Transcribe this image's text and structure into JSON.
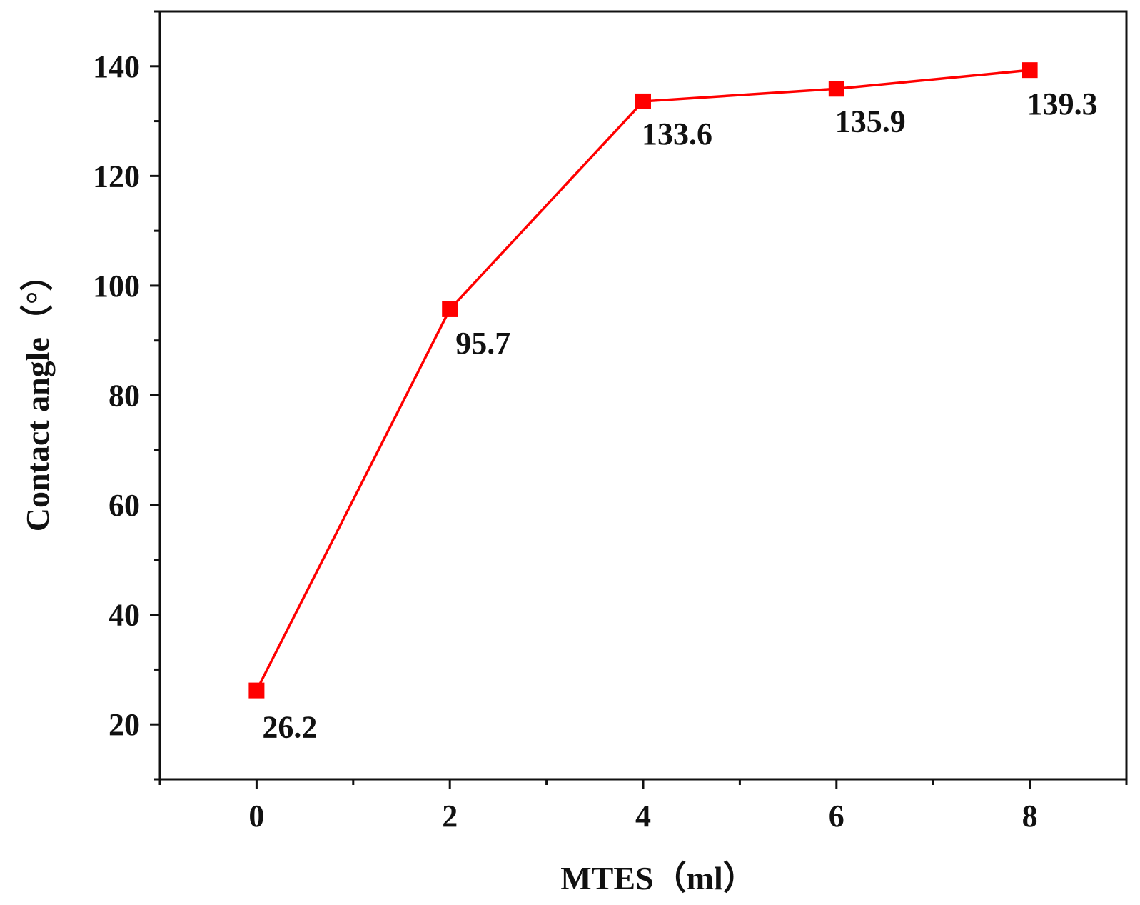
{
  "chart_data": {
    "type": "line",
    "title": "",
    "xlabel": "MTES（ml）",
    "ylabel": "Contact angle（°）",
    "xlim": [
      -1,
      9
    ],
    "ylim": [
      10,
      150
    ],
    "x_ticks": [
      "0",
      "2",
      "4",
      "6",
      "8"
    ],
    "x_tick_values": [
      0,
      2,
      4,
      6,
      8
    ],
    "y_ticks": [
      "20",
      "40",
      "60",
      "80",
      "100",
      "120",
      "140"
    ],
    "y_tick_values": [
      20,
      40,
      60,
      80,
      100,
      120,
      140
    ],
    "grid": false,
    "legend": "none",
    "series": [
      {
        "color": "#ff0000",
        "marker": "square",
        "x": [
          0,
          2,
          4,
          6,
          8
        ],
        "values": [
          26.2,
          95.7,
          133.6,
          135.9,
          139.3
        ],
        "data_labels": [
          "26.2",
          "95.7",
          "133.6",
          "135.9",
          "139.3"
        ]
      }
    ]
  }
}
